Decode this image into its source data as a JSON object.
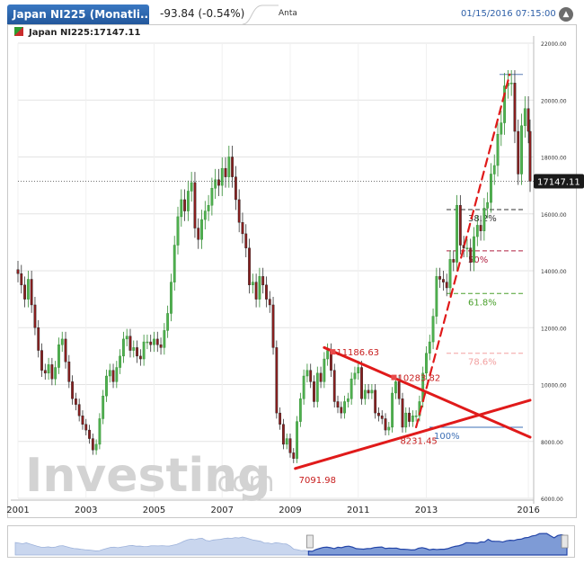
{
  "header": {
    "title": "Japan NI225 (Monatli...",
    "change": "-93.84 (-0.54%)",
    "tab_label": "Anta",
    "datetime": "01/15/2016 07:15:00",
    "collapse_glyph": "▲"
  },
  "legend": {
    "label": "Japan NI225:17147.11"
  },
  "watermark": {
    "brand": "Investing",
    "suffix": ".com"
  },
  "chart_data": {
    "type": "candlestick",
    "title": "Japan NI225:17147.11",
    "x_ticks": [
      "2001",
      "2003",
      "2005",
      "2007",
      "2009",
      "2011",
      "2013",
      "2016"
    ],
    "y_ticks": [
      "22000.00",
      "20000.00",
      "18000.00",
      "16000.00",
      "14000.00",
      "12000.00",
      "10000.00",
      "8000.00",
      "6000.00"
    ],
    "ylim": [
      6000,
      22000
    ],
    "xlim": [
      2001.0,
      2016.05
    ],
    "last_price": 17147.11,
    "last_price_label": "17147.11",
    "fibonacci": [
      {
        "label": "",
        "value": 20900,
        "color": "#5a7fb5"
      },
      {
        "label": "38.2%",
        "value": 16150,
        "color": "#333333"
      },
      {
        "label": "50%",
        "value": 14700,
        "color": "#b02040"
      },
      {
        "label": "61.8%",
        "value": 13200,
        "color": "#4aa02c"
      },
      {
        "label": "78.6%",
        "value": 11100,
        "color": "#f2a0a0"
      },
      {
        "label": "100%",
        "value": 8500,
        "color": "#3d6fb5"
      }
    ],
    "annotations": [
      {
        "label": "7091.98",
        "x": 2009.15,
        "y": 7050,
        "color": "#c81e1e"
      },
      {
        "label": "11186.63",
        "x": 2010.25,
        "y": 11150,
        "color": "#c81e1e"
      },
      {
        "label": "10283.82",
        "x": 2012.05,
        "y": 10250,
        "color": "#c81e1e"
      },
      {
        "label": "8231.45",
        "x": 2012.55,
        "y": 8300,
        "color": "#c81e1e"
      }
    ],
    "trendlines": [
      {
        "from": [
          2009.15,
          7050
        ],
        "to": [
          2016.05,
          9450
        ],
        "style": "solid"
      },
      {
        "from": [
          2010.0,
          11300
        ],
        "to": [
          2016.05,
          8150
        ],
        "style": "solid"
      },
      {
        "from": [
          2012.7,
          8500
        ],
        "to": [
          2015.45,
          20900
        ],
        "style": "dashed"
      }
    ],
    "series": [
      {
        "name": "Japan NI225",
        "monthly_close": [
          [
            2001.0,
            13900
          ],
          [
            2001.1,
            13500
          ],
          [
            2001.2,
            13000
          ],
          [
            2001.3,
            13700
          ],
          [
            2001.4,
            12800
          ],
          [
            2001.5,
            12000
          ],
          [
            2001.6,
            11200
          ],
          [
            2001.7,
            10500
          ],
          [
            2001.8,
            10400
          ],
          [
            2001.9,
            10700
          ],
          [
            2002.0,
            10200
          ],
          [
            2002.1,
            10600
          ],
          [
            2002.2,
            11400
          ],
          [
            2002.3,
            11600
          ],
          [
            2002.4,
            10800
          ],
          [
            2002.5,
            10100
          ],
          [
            2002.6,
            9500
          ],
          [
            2002.7,
            9300
          ],
          [
            2002.8,
            8900
          ],
          [
            2002.9,
            8600
          ],
          [
            2003.0,
            8400
          ],
          [
            2003.1,
            8100
          ],
          [
            2003.2,
            7700
          ],
          [
            2003.3,
            7900
          ],
          [
            2003.4,
            8800
          ],
          [
            2003.5,
            9600
          ],
          [
            2003.6,
            10300
          ],
          [
            2003.7,
            10500
          ],
          [
            2003.8,
            10100
          ],
          [
            2003.9,
            10600
          ],
          [
            2004.0,
            11000
          ],
          [
            2004.1,
            11600
          ],
          [
            2004.2,
            11700
          ],
          [
            2004.3,
            11200
          ],
          [
            2004.4,
            11300
          ],
          [
            2004.5,
            11000
          ],
          [
            2004.6,
            10900
          ],
          [
            2004.7,
            11500
          ],
          [
            2004.8,
            11500
          ],
          [
            2004.9,
            11400
          ],
          [
            2005.0,
            11600
          ],
          [
            2005.1,
            11400
          ],
          [
            2005.2,
            11300
          ],
          [
            2005.3,
            11900
          ],
          [
            2005.4,
            12500
          ],
          [
            2005.5,
            13600
          ],
          [
            2005.6,
            14900
          ],
          [
            2005.7,
            15900
          ],
          [
            2005.8,
            16500
          ],
          [
            2005.9,
            16100
          ],
          [
            2006.0,
            16800
          ],
          [
            2006.1,
            17100
          ],
          [
            2006.2,
            15500
          ],
          [
            2006.3,
            15100
          ],
          [
            2006.4,
            15800
          ],
          [
            2006.5,
            16100
          ],
          [
            2006.6,
            16300
          ],
          [
            2006.7,
            16900
          ],
          [
            2006.8,
            17200
          ],
          [
            2006.9,
            17000
          ],
          [
            2007.0,
            17600
          ],
          [
            2007.1,
            17300
          ],
          [
            2007.2,
            18000
          ],
          [
            2007.3,
            17300
          ],
          [
            2007.4,
            16500
          ],
          [
            2007.5,
            15700
          ],
          [
            2007.6,
            15300
          ],
          [
            2007.7,
            14800
          ],
          [
            2007.8,
            13500
          ],
          [
            2007.9,
            13600
          ],
          [
            2008.0,
            13000
          ],
          [
            2008.1,
            13800
          ],
          [
            2008.2,
            13500
          ],
          [
            2008.3,
            13000
          ],
          [
            2008.4,
            12800
          ],
          [
            2008.5,
            11300
          ],
          [
            2008.6,
            9000
          ],
          [
            2008.7,
            8600
          ],
          [
            2008.8,
            7900
          ],
          [
            2008.9,
            8100
          ],
          [
            2009.0,
            7600
          ],
          [
            2009.1,
            7400
          ],
          [
            2009.2,
            8700
          ],
          [
            2009.3,
            9500
          ],
          [
            2009.4,
            10300
          ],
          [
            2009.5,
            10500
          ],
          [
            2009.6,
            10100
          ],
          [
            2009.7,
            9400
          ],
          [
            2009.8,
            10400
          ],
          [
            2009.9,
            10100
          ],
          [
            2010.0,
            10900
          ],
          [
            2010.1,
            11200
          ],
          [
            2010.2,
            10500
          ],
          [
            2010.3,
            9400
          ],
          [
            2010.4,
            9200
          ],
          [
            2010.5,
            9000
          ],
          [
            2010.6,
            9400
          ],
          [
            2010.7,
            9500
          ],
          [
            2010.8,
            10200
          ],
          [
            2010.9,
            10400
          ],
          [
            2011.0,
            10600
          ],
          [
            2011.1,
            9500
          ],
          [
            2011.2,
            9800
          ],
          [
            2011.3,
            9700
          ],
          [
            2011.4,
            9800
          ],
          [
            2011.5,
            9000
          ],
          [
            2011.6,
            8900
          ],
          [
            2011.7,
            8800
          ],
          [
            2011.8,
            8400
          ],
          [
            2011.9,
            8500
          ],
          [
            2012.0,
            9700
          ],
          [
            2012.1,
            10100
          ],
          [
            2012.2,
            9500
          ],
          [
            2012.3,
            8500
          ],
          [
            2012.4,
            9000
          ],
          [
            2012.5,
            8700
          ],
          [
            2012.6,
            8900
          ],
          [
            2012.7,
            8900
          ],
          [
            2012.8,
            9400
          ],
          [
            2012.9,
            10400
          ],
          [
            2013.0,
            11100
          ],
          [
            2013.1,
            11500
          ],
          [
            2013.2,
            12400
          ],
          [
            2013.3,
            13800
          ],
          [
            2013.4,
            13700
          ],
          [
            2013.5,
            13600
          ],
          [
            2013.6,
            13400
          ],
          [
            2013.7,
            14400
          ],
          [
            2013.8,
            14300
          ],
          [
            2013.9,
            16300
          ],
          [
            2014.0,
            14900
          ],
          [
            2014.1,
            14800
          ],
          [
            2014.2,
            14800
          ],
          [
            2014.3,
            14300
          ],
          [
            2014.4,
            15200
          ],
          [
            2014.5,
            15600
          ],
          [
            2014.6,
            15400
          ],
          [
            2014.7,
            16200
          ],
          [
            2014.8,
            16400
          ],
          [
            2014.9,
            17400
          ],
          [
            2015.0,
            17700
          ],
          [
            2015.1,
            18800
          ],
          [
            2015.2,
            19200
          ],
          [
            2015.3,
            20500
          ],
          [
            2015.4,
            20600
          ],
          [
            2015.5,
            20600
          ],
          [
            2015.6,
            18900
          ],
          [
            2015.7,
            17400
          ],
          [
            2015.8,
            19100
          ],
          [
            2015.9,
            19700
          ],
          [
            2016.0,
            18900
          ],
          [
            2016.05,
            17147
          ]
        ]
      }
    ]
  }
}
